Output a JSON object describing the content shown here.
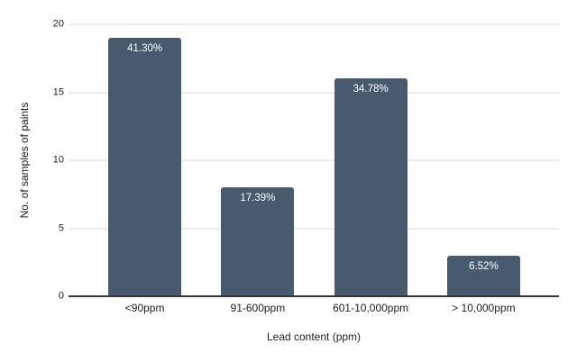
{
  "chart_data": {
    "type": "bar",
    "title": "",
    "categories": [
      "<90ppm",
      "91-600ppm",
      "601-10,000ppm",
      "> 10,000ppm"
    ],
    "values": [
      19,
      8,
      16,
      3
    ],
    "bar_labels": [
      "41.30%",
      "17.39%",
      "34.78%",
      "6.52%"
    ],
    "xlabel": "Lead content (ppm)",
    "ylabel": "No. of samples of paints",
    "ylim": [
      0,
      20
    ],
    "yticks": [
      "0",
      "5",
      "10",
      "15",
      "20"
    ],
    "grid": "horizontal-only",
    "legend": "none",
    "colors": {
      "bar": "#475a6e",
      "bar_label_text": "#ffffff",
      "gridline": "#dadada",
      "axis_line": "#333333",
      "text": "#212121",
      "background": "#ffffff"
    }
  }
}
